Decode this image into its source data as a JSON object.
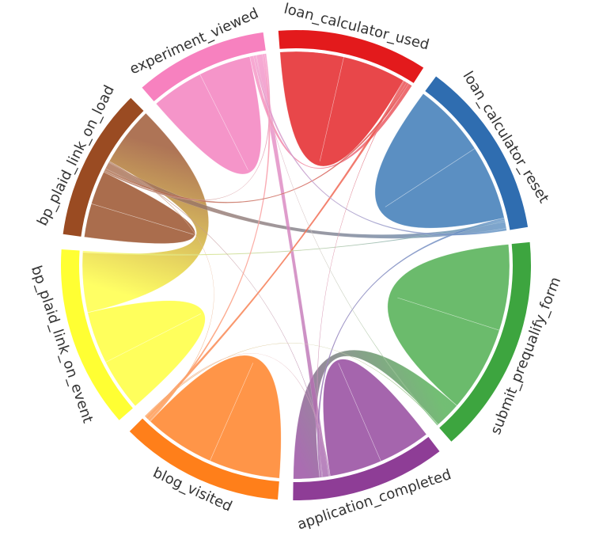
{
  "chart_data": {
    "type": "chord",
    "title": "",
    "groups": [
      {
        "name": "loan_calculator_used",
        "color": "#e31a1c",
        "fill": "#e8474a"
      },
      {
        "name": "loan_calculator_reset",
        "color": "#2f6db0",
        "fill": "#5b8fc2"
      },
      {
        "name": "submit_prequalify_form",
        "color": "#3da53f",
        "fill": "#6bbb6c"
      },
      {
        "name": "application_completed",
        "color": "#8e3d96",
        "fill": "#a565ad"
      },
      {
        "name": "blog_visited",
        "color": "#ff7f1a",
        "fill": "#ff9548"
      },
      {
        "name": "bp_plaid_link_on_event",
        "color": "#ffff33",
        "fill": "#ffff5c"
      },
      {
        "name": "bp_plaid_link_on_load",
        "color": "#9a4b22",
        "fill": "#aa6d4d"
      },
      {
        "name": "experiment_viewed",
        "color": "#f781bf",
        "fill": "#f595c9"
      }
    ],
    "chords": [
      {
        "source": "loan_calculator_used",
        "target": "loan_calculator_used",
        "value": 85
      },
      {
        "source": "loan_calculator_reset",
        "target": "loan_calculator_reset",
        "value": 100
      },
      {
        "source": "submit_prequalify_form",
        "target": "submit_prequalify_form",
        "value": 115
      },
      {
        "source": "application_completed",
        "target": "application_completed",
        "value": 70
      },
      {
        "source": "blog_visited",
        "target": "blog_visited",
        "value": 95
      },
      {
        "source": "bp_plaid_link_on_event",
        "target": "bp_plaid_link_on_event",
        "value": 70
      },
      {
        "source": "bp_plaid_link_on_load",
        "target": "bp_plaid_link_on_load",
        "value": 45
      },
      {
        "source": "experiment_viewed",
        "target": "experiment_viewed",
        "value": 70
      },
      {
        "source": "bp_plaid_link_on_load",
        "target": "bp_plaid_link_on_event",
        "value": 80
      },
      {
        "source": "loan_calculator_reset",
        "target": "bp_plaid_link_on_load",
        "value": 9
      },
      {
        "source": "submit_prequalify_form",
        "target": "application_completed",
        "value": 35
      },
      {
        "source": "experiment_viewed",
        "target": "application_completed",
        "value": 8
      },
      {
        "source": "loan_calculator_used",
        "target": "experiment_viewed",
        "value": 5
      },
      {
        "source": "loan_calculator_used",
        "target": "blog_visited",
        "value": 4
      },
      {
        "source": "loan_calculator_reset",
        "target": "application_completed",
        "value": 3
      },
      {
        "source": "loan_calculator_reset",
        "target": "bp_plaid_link_on_event",
        "value": 2
      },
      {
        "source": "experiment_viewed",
        "target": "blog_visited",
        "value": 3
      },
      {
        "source": "loan_calculator_used",
        "target": "bp_plaid_link_on_load",
        "value": 3
      },
      {
        "source": "loan_calculator_reset",
        "target": "experiment_viewed",
        "value": 3
      },
      {
        "source": "experiment_viewed",
        "target": "bp_plaid_link_on_load",
        "value": 2
      },
      {
        "source": "bp_plaid_link_on_load",
        "target": "application_completed",
        "value": 1
      },
      {
        "source": "bp_plaid_link_on_load",
        "target": "blog_visited",
        "value": 1
      },
      {
        "source": "blog_visited",
        "target": "submit_prequalify_form",
        "value": 1
      },
      {
        "source": "blog_visited",
        "target": "application_completed",
        "value": 1
      },
      {
        "source": "loan_calculator_used",
        "target": "application_completed",
        "value": 1
      },
      {
        "source": "experiment_viewed",
        "target": "submit_prequalify_form",
        "value": 1
      }
    ]
  }
}
